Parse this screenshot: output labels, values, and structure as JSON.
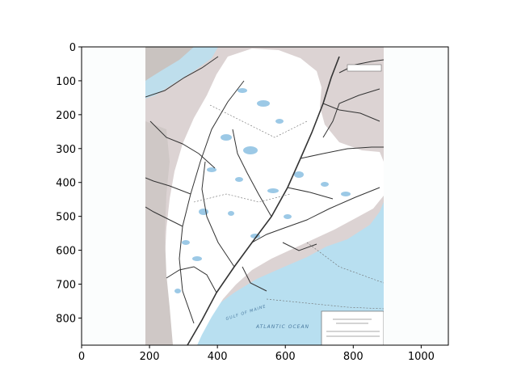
{
  "chart_data": {
    "type": "image",
    "title": "",
    "xlabel": "",
    "ylabel": "",
    "xlim": [
      0,
      1080
    ],
    "ylim": [
      880,
      0
    ],
    "x_ticks": [
      0,
      200,
      400,
      600,
      800,
      1000
    ],
    "y_ticks": [
      0,
      100,
      200,
      300,
      400,
      500,
      600,
      700,
      800
    ],
    "x_tick_labels": [
      "0",
      "200",
      "400",
      "600",
      "800",
      "1000"
    ],
    "y_tick_labels": [
      "0",
      "100",
      "200",
      "300",
      "400",
      "500",
      "600",
      "700",
      "800"
    ],
    "image": {
      "description_free": true,
      "extent_x": [
        188,
        890
      ],
      "extent_y": [
        0,
        880
      ],
      "map_text": {
        "ocean_label": "ATLANTIC OCEAN",
        "gulf_label": "GULF OF MAINE"
      }
    },
    "colors": {
      "sea": "#b8dff0",
      "land_outside": "#dcd3d3",
      "land_main": "#ffffff",
      "land_gray": "#c9c3c0",
      "roads": "#333333",
      "water_lakes": "#9cc9e6",
      "figure_background": "#fbfdfd"
    }
  }
}
